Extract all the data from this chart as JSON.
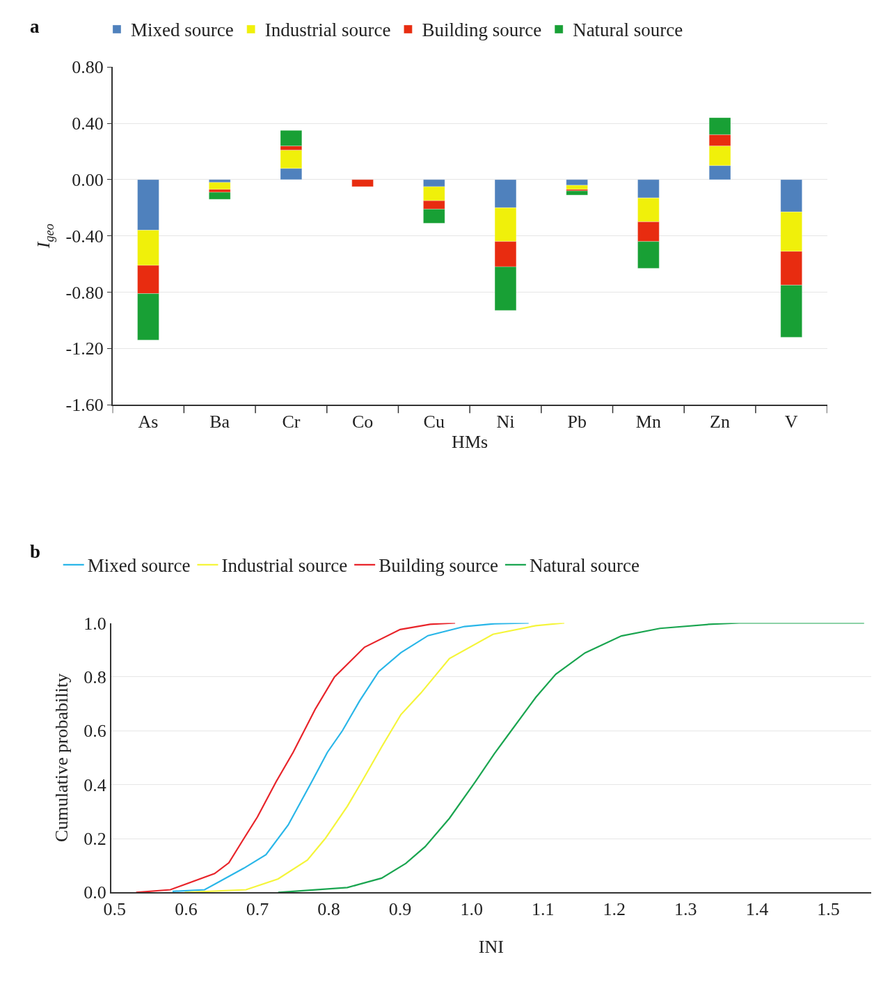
{
  "chart_data": [
    {
      "type": "bar",
      "title": "a",
      "xlabel": "HMs",
      "ylabel": "I$_{geo}$",
      "stacked": true,
      "legend": "top",
      "grid": "y",
      "categories": [
        "As",
        "Ba",
        "Cr",
        "Co",
        "Cu",
        "Ni",
        "Pb",
        "Mn",
        "Zn",
        "V"
      ],
      "series": [
        {
          "name": "Mixed source",
          "color": "#4f81bd",
          "values": [
            -0.36,
            -0.02,
            0.08,
            null,
            -0.05,
            -0.2,
            -0.04,
            -0.13,
            0.1,
            -0.23
          ]
        },
        {
          "name": "Industrial source",
          "color": "#f0f00a",
          "values": [
            -0.25,
            -0.05,
            0.13,
            null,
            -0.1,
            -0.24,
            -0.03,
            -0.17,
            0.14,
            -0.28
          ]
        },
        {
          "name": "Building source",
          "color": "#e82c10",
          "values": [
            -0.2,
            -0.02,
            0.03,
            -0.05,
            -0.06,
            -0.18,
            -0.01,
            -0.14,
            0.08,
            -0.24
          ]
        },
        {
          "name": "Natural source",
          "color": "#18a035",
          "values": [
            -0.33,
            -0.05,
            0.11,
            null,
            -0.1,
            -0.31,
            -0.03,
            -0.19,
            0.12,
            -0.37
          ]
        }
      ],
      "ylim": [
        -1.6,
        0.8
      ],
      "yticks": [
        {
          "value": -1.6,
          "label": "-1.60"
        },
        {
          "value": -1.2,
          "label": "-1.20"
        },
        {
          "value": -0.8,
          "label": "-0.80"
        },
        {
          "value": -0.4,
          "label": "-0.40"
        },
        {
          "value": 0,
          "label": "0.00"
        },
        {
          "value": 0.4,
          "label": "0.40"
        },
        {
          "value": 0.8,
          "label": "0.80"
        }
      ]
    },
    {
      "type": "line",
      "title": "b",
      "xlabel": "INI",
      "ylabel": "Cumulative probability",
      "legend": "top",
      "grid": "y",
      "marker": "none",
      "line_style": "solid",
      "series": [
        {
          "name": "Mixed source",
          "color": "#29b6e8",
          "x": [
            0.581,
            0.626,
            0.681,
            0.712,
            0.743,
            0.777,
            0.798,
            0.819,
            0.843,
            0.87,
            0.901,
            0.939,
            0.99,
            1.032,
            1.08
          ],
          "values": [
            0.004,
            0.01,
            0.09,
            0.14,
            0.25,
            0.415,
            0.52,
            0.6,
            0.71,
            0.82,
            0.89,
            0.953,
            0.987,
            0.997,
            1.0
          ]
        },
        {
          "name": "Industrial source",
          "color": "#f5f53a",
          "x": [
            0.598,
            0.684,
            0.729,
            0.77,
            0.795,
            0.826,
            0.846,
            0.874,
            0.901,
            0.929,
            0.969,
            1.03,
            1.09,
            1.13
          ],
          "values": [
            0.0,
            0.01,
            0.05,
            0.12,
            0.2,
            0.32,
            0.41,
            0.54,
            0.66,
            0.74,
            0.868,
            0.958,
            0.99,
            1.0
          ]
        },
        {
          "name": "Building source",
          "color": "#e8242a",
          "x": [
            0.53,
            0.578,
            0.64,
            0.66,
            0.681,
            0.7,
            0.726,
            0.75,
            0.781,
            0.808,
            0.85,
            0.9,
            0.942,
            0.977
          ],
          "values": [
            0.0,
            0.01,
            0.07,
            0.11,
            0.2,
            0.28,
            0.41,
            0.52,
            0.68,
            0.8,
            0.91,
            0.976,
            0.995,
            1.0
          ]
        },
        {
          "name": "Natural source",
          "color": "#1aa550",
          "x": [
            0.729,
            0.826,
            0.874,
            0.908,
            0.935,
            0.969,
            1.005,
            1.032,
            1.05,
            1.09,
            1.118,
            1.159,
            1.21,
            1.264,
            1.333,
            1.375,
            1.55
          ],
          "values": [
            0.0,
            0.018,
            0.053,
            0.108,
            0.17,
            0.275,
            0.41,
            0.515,
            0.58,
            0.724,
            0.81,
            0.889,
            0.952,
            0.98,
            0.995,
            1.0,
            1.0
          ]
        }
      ],
      "xlim": [
        0.495,
        1.56
      ],
      "xticks": [
        {
          "value": 0.5,
          "label": "0.5"
        },
        {
          "value": 0.6,
          "label": "0.6"
        },
        {
          "value": 0.7,
          "label": "0.7"
        },
        {
          "value": 0.8,
          "label": "0.8"
        },
        {
          "value": 0.9,
          "label": "0.9"
        },
        {
          "value": 1.0,
          "label": "1.0"
        },
        {
          "value": 1.1,
          "label": "1.1"
        },
        {
          "value": 1.2,
          "label": "1.2"
        },
        {
          "value": 1.3,
          "label": "1.3"
        },
        {
          "value": 1.4,
          "label": "1.4"
        },
        {
          "value": 1.5,
          "label": "1.5"
        }
      ],
      "ylim": [
        0,
        1
      ],
      "yticks": [
        {
          "value": 0,
          "label": "0.0"
        },
        {
          "value": 0.2,
          "label": "0.2"
        },
        {
          "value": 0.4,
          "label": "0.4"
        },
        {
          "value": 0.6,
          "label": "0.6"
        },
        {
          "value": 0.8,
          "label": "0.8"
        },
        {
          "value": 1.0,
          "label": "1.0"
        }
      ]
    }
  ]
}
